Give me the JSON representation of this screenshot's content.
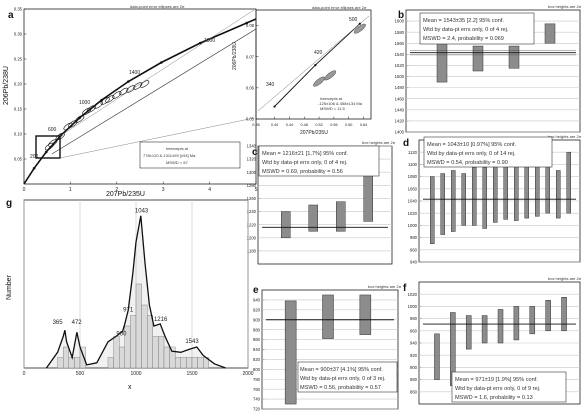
{
  "panels": {
    "a": {
      "letter": "a",
      "note": "data-point error ellipses are 2σ",
      "ylabel": "206Pb/238U",
      "xlabel": "207Pb/235U",
      "intercepts": [
        "Intercepts at",
        "778±120 & 1311±93  [±94]  Ma",
        "MSWD = 57"
      ],
      "concordia_ages": [
        "200",
        "600",
        "1000",
        "1400",
        "1800"
      ]
    },
    "inset": {
      "note": "data-point error ellipses are 2σ",
      "ylabel": "206Pb/238U",
      "xlabel": "207Pb/235U",
      "intercepts": [
        "Intercepts at",
        "-125±106 & 458±134 Ma",
        "MSWD = 11.5"
      ],
      "concordia_ages": [
        "340",
        "420",
        "500"
      ]
    },
    "b": {
      "letter": "b",
      "note": "box heights are 2σ",
      "stats": [
        "Mean = 1543±35  [2.2]  95% conf.",
        "Wtd by data-pt errs only, 0 of 4 rej.",
        "MSWD = 2.4, probability = 0.069"
      ]
    },
    "c": {
      "letter": "c",
      "note": "box heights are 2σ",
      "stats": [
        "Mean = 1216±21  [1.7%]  95% conf.",
        "Wtd by data-pt errs only, 0 of 4 rej.",
        "MSWD = 0.69, probability = 0.56"
      ]
    },
    "d": {
      "letter": "d",
      "note": "box heights are 2σ",
      "stats": [
        "Mean = 1043±10  [0.97%]  95% conf.",
        "Wtd by data-pt errs only, 0 of 14 rej.",
        "MSWD = 0.54, probability = 0.90"
      ]
    },
    "e": {
      "letter": "e",
      "note": "box heights are 2σ",
      "stats": [
        "Mean = 900±37  [4.1%]  95% conf.",
        "Wtd by data-pt errs only, 0 of 3 rej.",
        "MSWD = 0.56, probability = 0.57"
      ]
    },
    "f": {
      "letter": "f",
      "note": "box heights are 2σ",
      "stats": [
        "Mean = 971±19  [1.9%]  95% conf.",
        "Wtd by data-pt errs only, 0 of 9 rej.",
        "MSWD = 1.6, probability = 0.13"
      ]
    },
    "g": {
      "letter": "g",
      "ylabel": "Number",
      "xlabel": "x"
    }
  },
  "chart_data": [
    {
      "panel": "a",
      "type": "scatter",
      "xlabel": "207Pb/235U",
      "ylabel": "206Pb/238U",
      "xlim": [
        0,
        5
      ],
      "ylim": [
        0,
        0.35
      ],
      "xticks": [
        0,
        1,
        2,
        3,
        4,
        5
      ],
      "yticks": [
        0.05,
        0.1,
        0.15,
        0.2,
        0.25,
        0.3,
        0.35
      ],
      "concordia": {
        "ages": [
          0,
          200,
          400,
          600,
          800,
          1000,
          1200,
          1400,
          1600,
          1800,
          2100
        ],
        "labeled_ages": [
          200,
          600,
          1000,
          1400,
          1800
        ],
        "x": [
          0,
          0.218,
          0.479,
          0.799,
          1.195,
          1.675,
          2.25,
          2.96,
          3.8,
          4.8,
          5.0
        ],
        "y": [
          0,
          0.0315,
          0.064,
          0.0976,
          0.132,
          0.168,
          0.205,
          0.243,
          0.282,
          0.322,
          0.33
        ]
      },
      "discordia": {
        "x": [
          0.6,
          5.0
        ],
        "y": [
          0.06,
          0.31
        ]
      },
      "ellipses_x": [
        0.55,
        0.62,
        0.78,
        0.95,
        1.05,
        1.2,
        1.35,
        1.45,
        1.6,
        1.75,
        1.85,
        2.0,
        2.15,
        2.3,
        2.45,
        2.6
      ],
      "ellipses_y": [
        0.075,
        0.082,
        0.095,
        0.115,
        0.12,
        0.13,
        0.145,
        0.15,
        0.158,
        0.166,
        0.17,
        0.178,
        0.185,
        0.19,
        0.196,
        0.2
      ],
      "intercepts": "778±120 & 1311±93 [±94] Ma",
      "mswd": 57
    },
    {
      "panel": "inset",
      "type": "scatter",
      "xlabel": "207Pb/235U",
      "ylabel": "206Pb/238U",
      "xlim": [
        0.35,
        0.66
      ],
      "ylim": [
        0.05,
        0.085
      ],
      "xticks": [
        0.35,
        0.4,
        0.44,
        0.48,
        0.52,
        0.56,
        0.6,
        0.64
      ],
      "yticks": [
        0.05,
        0.06,
        0.07,
        0.08
      ],
      "concordia": {
        "ages": [
          340,
          420,
          500
        ],
        "x": [
          0.4,
          0.51,
          0.63
        ],
        "y": [
          0.054,
          0.0673,
          0.0806
        ]
      },
      "ellipses_x": [
        0.52,
        0.55,
        0.63
      ],
      "ellipses_y": [
        0.062,
        0.064,
        0.079
      ],
      "intercepts": "-125±106 & 458±134 Ma",
      "mswd": 11.5
    },
    {
      "panel": "b",
      "type": "bar",
      "ylim": [
        1400,
        1620
      ],
      "yticks": [
        1400,
        1420,
        1440,
        1460,
        1480,
        1500,
        1520,
        1540,
        1560,
        1580,
        1600
      ],
      "mean": 1543,
      "mean_lower": 1539,
      "mean_upper": 1547,
      "box_low": [
        1490,
        1510,
        1515,
        1560
      ],
      "box_high": [
        1570,
        1555,
        1555,
        1595
      ]
    },
    {
      "panel": "c",
      "type": "bar",
      "ylim": [
        1160,
        1340
      ],
      "yticks": [
        1180,
        1200,
        1220,
        1240,
        1260,
        1280,
        1300,
        1320,
        1340
      ],
      "mean": 1216,
      "box_low": [
        1200,
        1210,
        1210,
        1225
      ],
      "box_high": [
        1240,
        1250,
        1255,
        1325
      ]
    },
    {
      "panel": "d",
      "type": "bar",
      "ylim": [
        940,
        1140
      ],
      "yticks": [
        940,
        960,
        980,
        1000,
        1020,
        1040,
        1060,
        1080,
        1100,
        1120
      ],
      "mean": 1043,
      "box_low": [
        970,
        985,
        990,
        1000,
        1000,
        995,
        1005,
        1010,
        1008,
        1012,
        1015,
        1020,
        1012,
        1020
      ],
      "box_high": [
        1080,
        1085,
        1090,
        1085,
        1095,
        1095,
        1100,
        1105,
        1102,
        1100,
        1110,
        1115,
        1090,
        1120
      ]
    },
    {
      "panel": "e",
      "type": "bar",
      "ylim": [
        720,
        960
      ],
      "yticks": [
        720,
        740,
        760,
        780,
        800,
        820,
        840,
        860,
        880,
        900,
        920,
        940
      ],
      "mean": 900,
      "box_low": [
        730,
        862,
        870
      ],
      "box_high": [
        938,
        950,
        950
      ]
    },
    {
      "panel": "f",
      "type": "bar",
      "ylim": [
        840,
        1040
      ],
      "yticks": [
        860,
        880,
        900,
        920,
        940,
        960,
        980,
        1000,
        1020
      ],
      "mean": 971,
      "box_low": [
        880,
        870,
        930,
        940,
        940,
        945,
        955,
        960,
        960
      ],
      "box_high": [
        955,
        990,
        985,
        985,
        995,
        1000,
        1000,
        1010,
        1015
      ]
    },
    {
      "panel": "g",
      "type": "area",
      "xlabel": "x",
      "ylabel": "Number",
      "xlim": [
        0,
        2000
      ],
      "xticks": [
        0,
        500,
        1000,
        1500,
        2000
      ],
      "ylim": [
        0,
        16
      ],
      "grid": true,
      "peaks": [
        365,
        472,
        900,
        971,
        1043,
        1216,
        1543
      ],
      "peak_labels": [
        "365",
        "472",
        "900",
        "971",
        "1043",
        "1216",
        "1543"
      ],
      "peak_label_x": [
        300,
        470,
        870,
        930,
        1050,
        1220,
        1500
      ],
      "peak_label_y": [
        4.2,
        4.2,
        3.1,
        5.4,
        14.8,
        4.5,
        2.4
      ],
      "histogram_bins": [
        300,
        350,
        400,
        450,
        500,
        550,
        600,
        650,
        700,
        750,
        800,
        850,
        900,
        950,
        1000,
        1050,
        1100,
        1150,
        1200,
        1250,
        1300,
        1350,
        1400,
        1450,
        1500,
        1550,
        1600,
        1650,
        1700
      ],
      "histogram_counts": [
        1,
        2,
        1,
        1,
        2,
        0,
        0,
        0,
        0,
        1,
        3,
        2,
        4,
        5,
        8,
        6,
        5,
        3,
        3,
        2,
        2,
        1,
        1,
        1,
        1,
        1,
        1,
        0,
        0
      ],
      "curve_x": [
        200,
        300,
        350,
        365,
        380,
        430,
        472,
        500,
        560,
        650,
        750,
        820,
        880,
        900,
        930,
        971,
        1000,
        1043,
        1080,
        1120,
        1160,
        1216,
        1260,
        1320,
        1400,
        1480,
        1543,
        1600,
        1700,
        1800
      ],
      "curve_y": [
        0,
        1.5,
        3,
        3.6,
        2.5,
        1,
        3.4,
        2,
        0.3,
        0.5,
        2.5,
        3,
        3.5,
        4.2,
        5.5,
        9,
        12,
        14.5,
        10,
        6,
        4,
        4.2,
        3,
        1.6,
        1.5,
        1.8,
        2,
        1.2,
        0.4,
        0
      ]
    }
  ]
}
